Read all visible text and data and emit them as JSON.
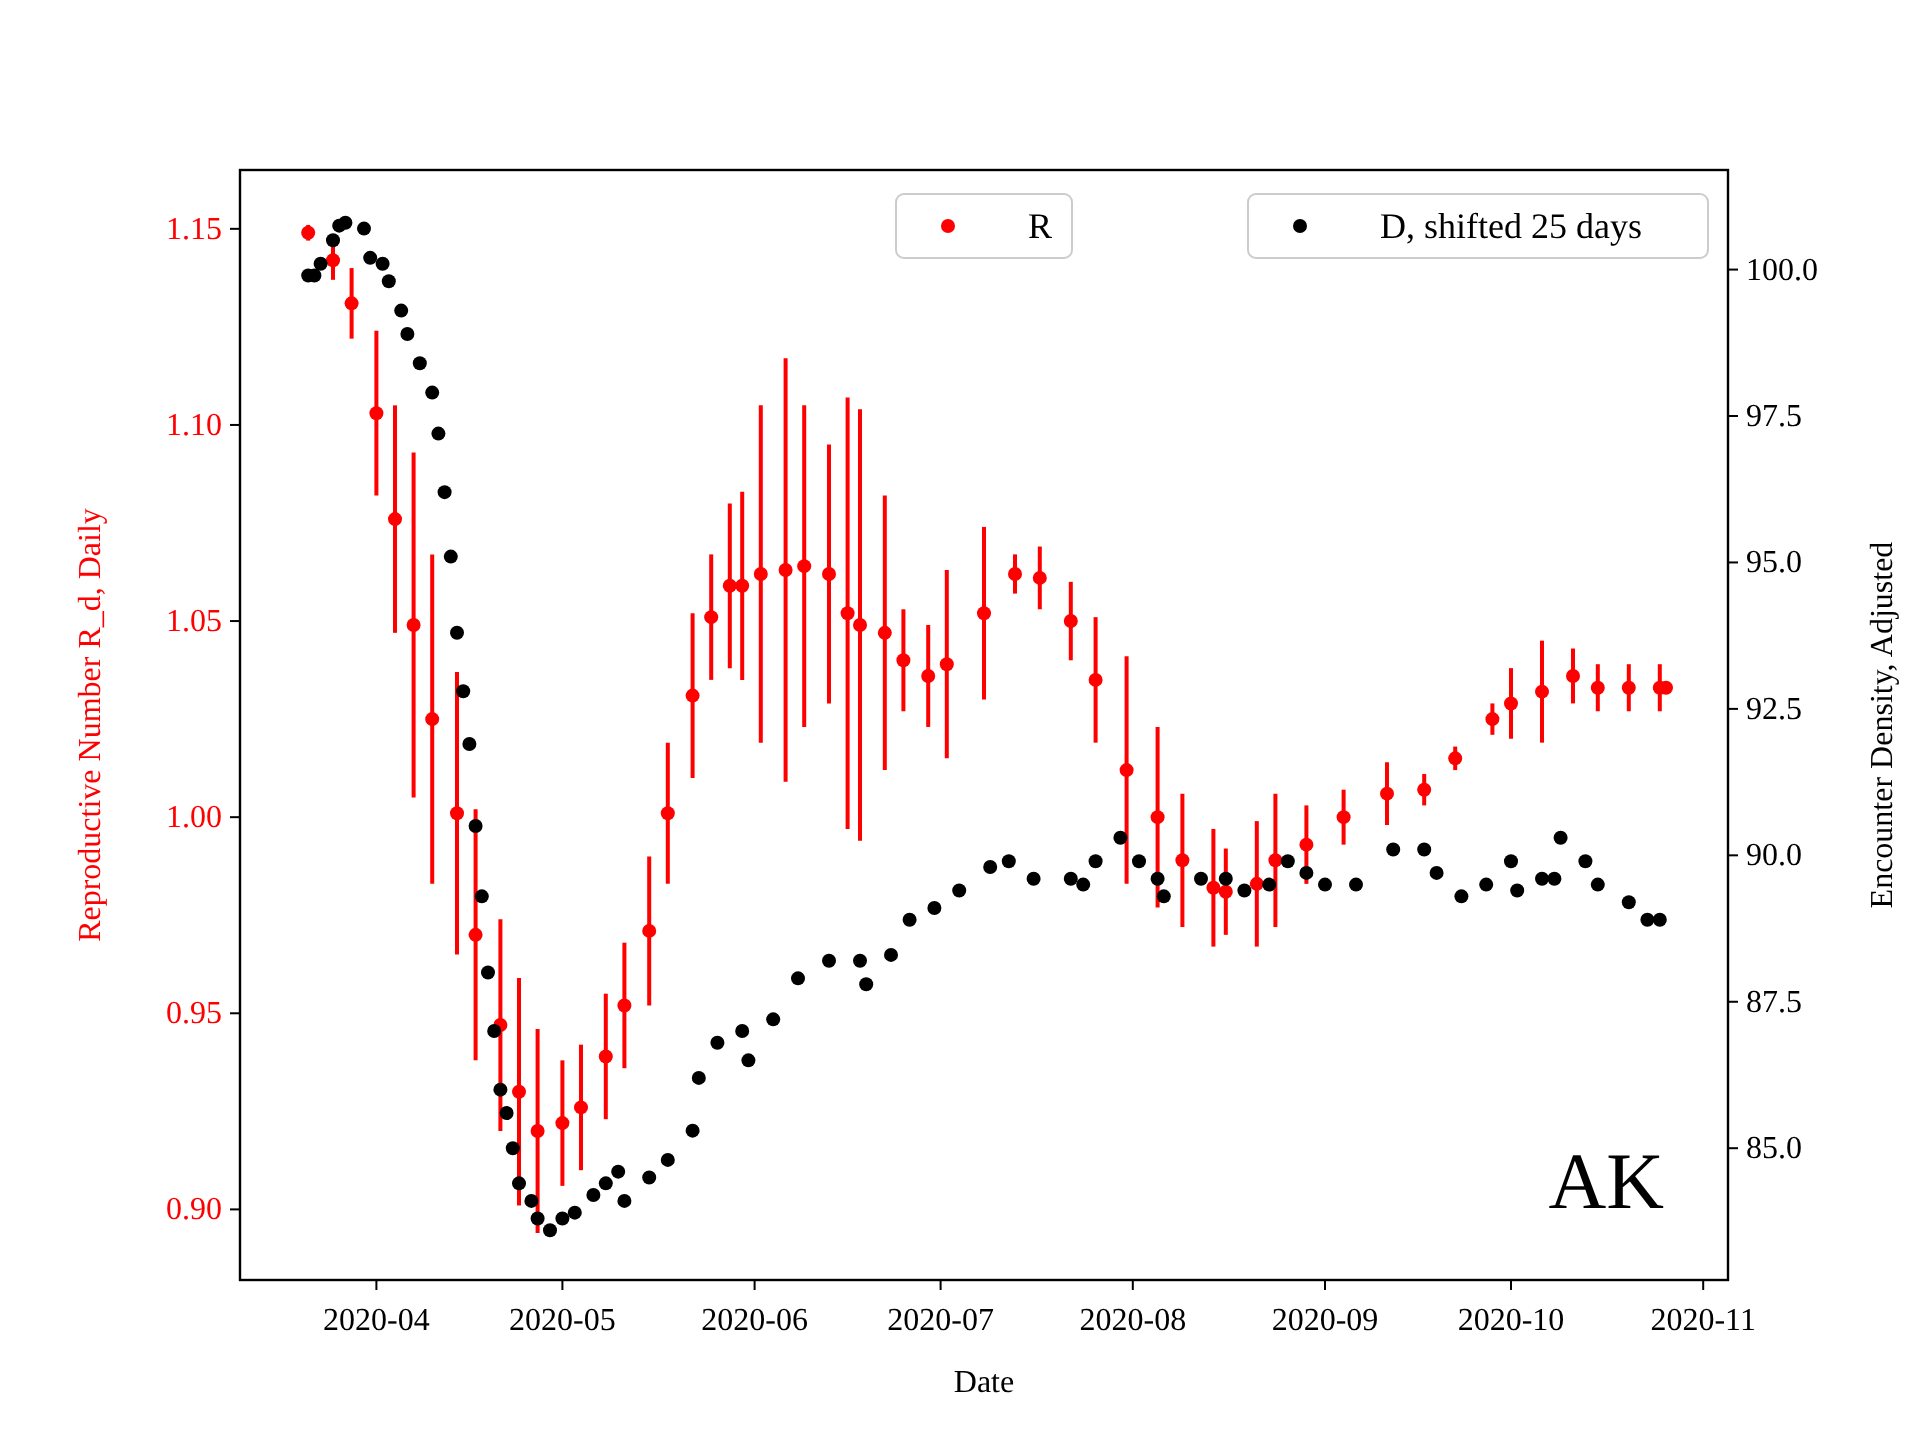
{
  "chart_data": {
    "type": "scatter",
    "xlabel": "Date",
    "ylabel": "Reproductive Number R_d, Daily",
    "y2label": "Encounter Density, Adjusted",
    "xlim": [
      "2020-03-10",
      "2020-11-05"
    ],
    "xticks": [
      "2020-04",
      "2020-05",
      "2020-06",
      "2020-07",
      "2020-08",
      "2020-09",
      "2020-10",
      "2020-11"
    ],
    "ylim": [
      0.882,
      1.165
    ],
    "yticks": [
      {
        "value": 0.9,
        "label": "0.90"
      },
      {
        "value": 0.95,
        "label": "0.95"
      },
      {
        "value": 1.0,
        "label": "1.00"
      },
      {
        "value": 1.05,
        "label": "1.05"
      },
      {
        "value": 1.1,
        "label": "1.10"
      },
      {
        "value": 1.15,
        "label": "1.15"
      }
    ],
    "y2lim": [
      82.75,
      101.7
    ],
    "y2ticks": [
      {
        "value": 85,
        "label": "85.0"
      },
      {
        "value": 87.5,
        "label": "87.5"
      },
      {
        "value": 90,
        "label": "90.0"
      },
      {
        "value": 92.5,
        "label": "92.5"
      },
      {
        "value": 95,
        "label": "95.0"
      },
      {
        "value": 97.5,
        "label": "97.5"
      },
      {
        "value": 100,
        "label": "100.0"
      }
    ],
    "grid": false,
    "marker": "circle",
    "legend": "top right",
    "annotations": [
      "AK"
    ],
    "series": [
      {
        "name": "R",
        "color": "#ff0000",
        "x": [
          "2020-03-21",
          "2020-03-25",
          "2020-03-28",
          "2020-04-01",
          "2020-04-04",
          "2020-04-07",
          "2020-04-10",
          "2020-04-14",
          "2020-04-17",
          "2020-04-21",
          "2020-04-24",
          "2020-04-27",
          "2020-05-01",
          "2020-05-04",
          "2020-05-08",
          "2020-05-11",
          "2020-05-15",
          "2020-05-18",
          "2020-05-22",
          "2020-05-25",
          "2020-05-28",
          "2020-05-30",
          "2020-06-02",
          "2020-06-06",
          "2020-06-09",
          "2020-06-13",
          "2020-06-16",
          "2020-06-18",
          "2020-06-22",
          "2020-06-25",
          "2020-06-29",
          "2020-07-02",
          "2020-07-08",
          "2020-07-13",
          "2020-07-17",
          "2020-07-22",
          "2020-07-26",
          "2020-07-31",
          "2020-08-05",
          "2020-08-09",
          "2020-08-14",
          "2020-08-16",
          "2020-08-21",
          "2020-08-24",
          "2020-08-29",
          "2020-09-04",
          "2020-09-11",
          "2020-09-17",
          "2020-09-22",
          "2020-09-28",
          "2020-10-01",
          "2020-10-06",
          "2020-10-11",
          "2020-10-15",
          "2020-10-20",
          "2020-10-25",
          "2020-10-26"
        ],
        "values": [
          1.149,
          1.142,
          1.131,
          1.103,
          1.076,
          1.049,
          1.025,
          1.001,
          0.97,
          0.947,
          0.93,
          0.92,
          0.922,
          0.926,
          0.939,
          0.952,
          0.971,
          1.001,
          1.031,
          1.051,
          1.059,
          1.059,
          1.062,
          1.063,
          1.064,
          1.062,
          1.052,
          1.049,
          1.047,
          1.04,
          1.036,
          1.039,
          1.052,
          1.062,
          1.061,
          1.05,
          1.035,
          1.012,
          1.0,
          0.989,
          0.982,
          0.981,
          0.983,
          0.989,
          0.993,
          1.0,
          1.006,
          1.007,
          1.015,
          1.025,
          1.029,
          1.032,
          1.036,
          1.033,
          1.033,
          1.033,
          1.033
        ],
        "errors": [
          0.002,
          0.005,
          0.009,
          0.021,
          0.029,
          0.044,
          0.042,
          0.036,
          0.032,
          0.027,
          0.029,
          0.026,
          0.016,
          0.016,
          0.016,
          0.016,
          0.019,
          0.018,
          0.021,
          0.016,
          0.021,
          0.024,
          0.043,
          0.054,
          0.041,
          0.033,
          0.055,
          0.055,
          0.035,
          0.013,
          0.013,
          0.024,
          0.022,
          0.005,
          0.008,
          0.01,
          0.016,
          0.029,
          0.023,
          0.017,
          0.015,
          0.011,
          0.016,
          0.017,
          0.01,
          0.007,
          0.008,
          0.004,
          0.003,
          0.004,
          0.009,
          0.013,
          0.007,
          0.006,
          0.006,
          0.006,
          0.001
        ]
      },
      {
        "name": "D, shifted 25 days",
        "color": "#000000",
        "axis": "y2",
        "x": [
          "2020-03-21",
          "2020-03-22",
          "2020-03-23",
          "2020-03-25",
          "2020-03-26",
          "2020-03-27",
          "2020-03-30",
          "2020-03-31",
          "2020-04-02",
          "2020-04-03",
          "2020-04-05",
          "2020-04-06",
          "2020-04-08",
          "2020-04-10",
          "2020-04-11",
          "2020-04-12",
          "2020-04-13",
          "2020-04-14",
          "2020-04-15",
          "2020-04-16",
          "2020-04-17",
          "2020-04-18",
          "2020-04-19",
          "2020-04-20",
          "2020-04-21",
          "2020-04-22",
          "2020-04-23",
          "2020-04-24",
          "2020-04-26",
          "2020-04-27",
          "2020-04-29",
          "2020-05-01",
          "2020-05-03",
          "2020-05-06",
          "2020-05-08",
          "2020-05-10",
          "2020-05-11",
          "2020-05-15",
          "2020-05-18",
          "2020-05-22",
          "2020-05-23",
          "2020-05-26",
          "2020-05-30",
          "2020-05-31",
          "2020-06-04",
          "2020-06-08",
          "2020-06-13",
          "2020-06-18",
          "2020-06-19",
          "2020-06-23",
          "2020-06-26",
          "2020-06-30",
          "2020-07-04",
          "2020-07-09",
          "2020-07-12",
          "2020-07-16",
          "2020-07-22",
          "2020-07-24",
          "2020-07-26",
          "2020-07-30",
          "2020-08-02",
          "2020-08-05",
          "2020-08-06",
          "2020-08-12",
          "2020-08-16",
          "2020-08-19",
          "2020-08-23",
          "2020-08-26",
          "2020-08-29",
          "2020-09-01",
          "2020-09-06",
          "2020-09-12",
          "2020-09-17",
          "2020-09-19",
          "2020-09-23",
          "2020-09-27",
          "2020-10-01",
          "2020-10-02",
          "2020-10-06",
          "2020-10-08",
          "2020-10-09",
          "2020-10-13",
          "2020-10-15",
          "2020-10-20",
          "2020-10-23",
          "2020-10-25"
        ],
        "values": [
          99.9,
          99.9,
          100.1,
          100.5,
          100.75,
          100.8,
          100.7,
          100.2,
          100.1,
          99.8,
          99.3,
          98.9,
          98.4,
          97.9,
          97.2,
          96.2,
          95.1,
          93.8,
          92.8,
          91.9,
          90.5,
          89.3,
          88.0,
          87.0,
          86.0,
          85.6,
          85.0,
          84.4,
          84.1,
          83.8,
          83.6,
          83.8,
          83.9,
          84.2,
          84.4,
          84.6,
          84.1,
          84.5,
          84.8,
          85.3,
          86.2,
          86.8,
          87.0,
          86.5,
          87.2,
          87.9,
          88.2,
          88.2,
          87.8,
          88.3,
          88.9,
          89.1,
          89.4,
          89.8,
          89.9,
          89.6,
          89.6,
          89.5,
          89.9,
          90.3,
          89.9,
          89.6,
          89.3,
          89.6,
          89.6,
          89.4,
          89.5,
          89.9,
          89.7,
          89.5,
          89.5,
          90.1,
          90.1,
          89.7,
          89.3,
          89.5,
          89.9,
          89.4,
          89.6,
          89.6,
          90.3,
          89.9,
          89.5,
          89.2,
          88.9,
          88.9
        ]
      }
    ]
  }
}
